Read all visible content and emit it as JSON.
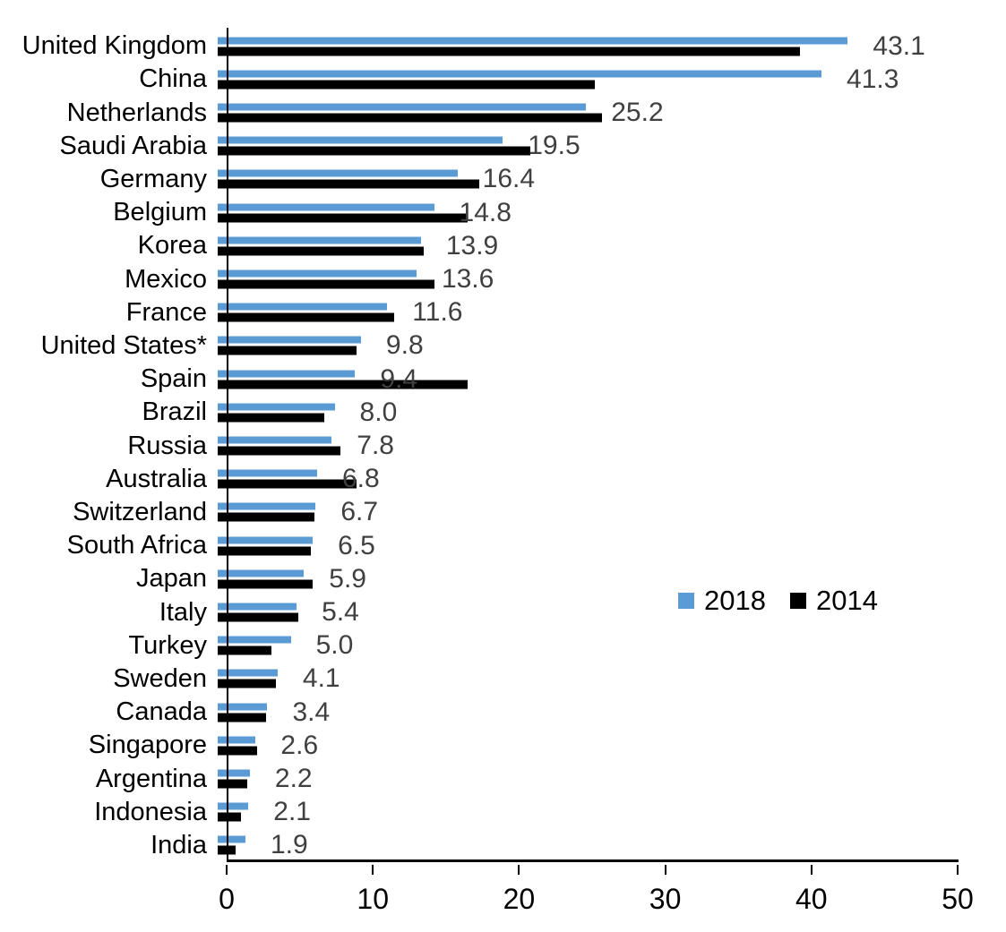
{
  "chart_data": {
    "type": "bar",
    "orientation": "horizontal",
    "title": "",
    "xlabel": "",
    "ylabel": "",
    "xlim": [
      0,
      50
    ],
    "x_ticks": [
      "0",
      "10",
      "20",
      "30",
      "40",
      "50"
    ],
    "grid": false,
    "legend_position": "middle-right",
    "value_labels_for_series": "2018",
    "value_label_color": "#404040",
    "categories": [
      "United Kingdom",
      "China",
      "Netherlands",
      "Saudi Arabia",
      "Germany",
      "Belgium",
      "Korea",
      "Mexico",
      "France",
      "United States*",
      "Spain",
      "Brazil",
      "Russia",
      "Australia",
      "Switzerland",
      "South Africa",
      "Japan",
      "Italy",
      "Turkey",
      "Sweden",
      "Canada",
      "Singapore",
      "Argentina",
      "Indonesia",
      "India"
    ],
    "series": [
      {
        "name": "2018",
        "color": "#5B9BD5",
        "values": [
          43.1,
          41.3,
          25.2,
          19.5,
          16.4,
          14.8,
          13.9,
          13.6,
          11.6,
          9.8,
          9.4,
          8.0,
          7.8,
          6.8,
          6.7,
          6.5,
          5.9,
          5.4,
          5.0,
          4.1,
          3.4,
          2.6,
          2.2,
          2.1,
          1.9
        ],
        "value_labels": [
          "43.1",
          "41.3",
          "25.2",
          "19.5",
          "16.4",
          "14.8",
          "13.9",
          "13.6",
          "11.6",
          "9.8",
          "9.4",
          "8.0",
          "7.8",
          "6.8",
          "6.7",
          "6.5",
          "5.9",
          "5.4",
          "5.0",
          "4.1",
          "3.4",
          "2.6",
          "2.2",
          "2.1",
          "1.9"
        ]
      },
      {
        "name": "2014",
        "color": "#000000",
        "values": [
          39.8,
          25.8,
          26.3,
          21.4,
          17.9,
          17.1,
          14.1,
          14.8,
          12.1,
          9.5,
          17.1,
          7.3,
          8.4,
          9.5,
          6.6,
          6.4,
          6.5,
          5.5,
          3.7,
          4.0,
          3.3,
          2.7,
          2.0,
          1.6,
          1.2
        ]
      }
    ]
  },
  "legend": {
    "items": [
      {
        "label": "2018",
        "color": "#5B9BD5"
      },
      {
        "label": "2014",
        "color": "#000000"
      }
    ]
  }
}
